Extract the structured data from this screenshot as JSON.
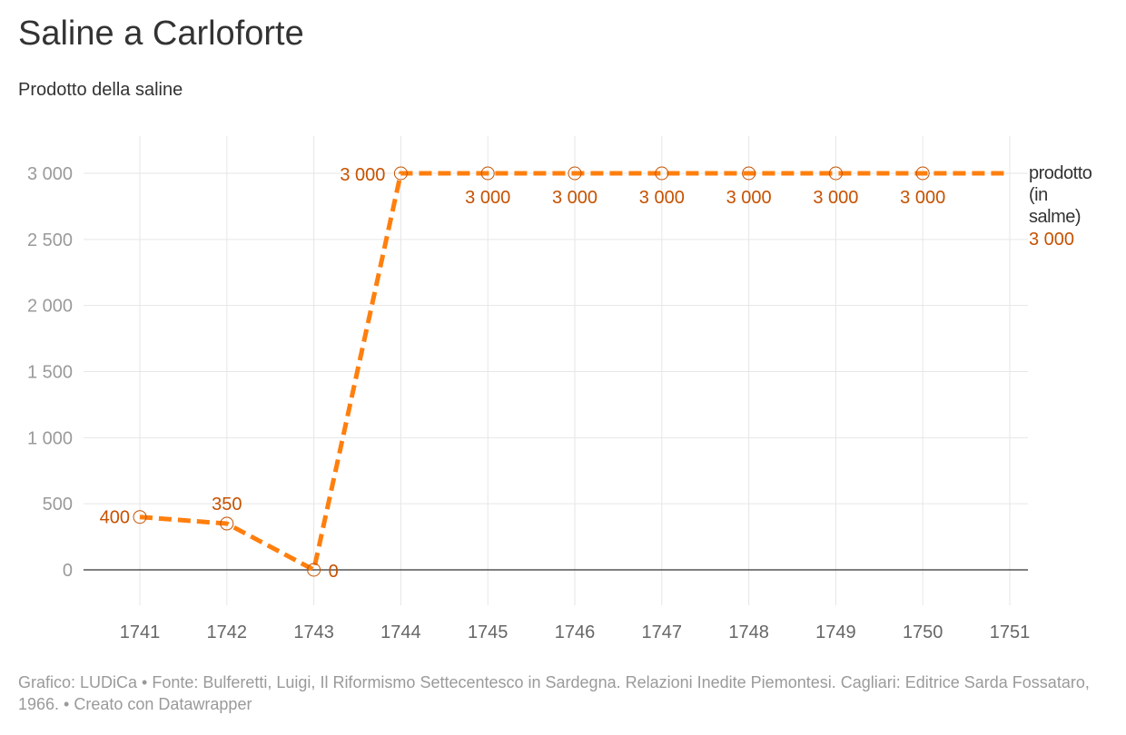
{
  "header": {
    "title": "Saline a Carloforte",
    "subtitle": "Prodotto della saline"
  },
  "footer": {
    "credit": "Grafico: LUDiCa • Fonte: Bulferetti, Luigi, Il Riformismo Settecentesco in Sardegna. Relazioni Inedite Piemontesi. Cagliari: Editrice Sarda Fossataro, 1966. • Creato con Datawrapper"
  },
  "colors": {
    "line": "#ff7f0e",
    "label": "#c65100",
    "grid": "#e6e6e6",
    "zero_axis": "#333333",
    "tick_text": "#9a9a9a",
    "x_tick_text": "#666666",
    "series_label": "#333333"
  },
  "chart_data": {
    "type": "line",
    "x": [
      1741,
      1742,
      1743,
      1744,
      1745,
      1746,
      1747,
      1748,
      1749,
      1750,
      1751
    ],
    "series": [
      {
        "name": "prodotto (in salme)",
        "values": [
          400,
          350,
          0,
          3000,
          3000,
          3000,
          3000,
          3000,
          3000,
          3000,
          3000
        ],
        "data_labels": [
          "400",
          "350",
          "0",
          "3 000",
          "3 000",
          "3 000",
          "3 000",
          "3 000",
          "3 000",
          "3 000",
          "3 000"
        ],
        "end_label_lines": [
          "prodotto",
          "(in",
          "salme)"
        ],
        "end_value_label": "3 000",
        "line_style": "dashed"
      }
    ],
    "y_ticks": [
      0,
      500,
      1000,
      1500,
      2000,
      2500,
      3000
    ],
    "y_tick_labels": [
      "0",
      "500",
      "1 000",
      "1 500",
      "2 000",
      "2 500",
      "3 000"
    ],
    "x_tick_labels": [
      "1741",
      "1742",
      "1743",
      "1744",
      "1745",
      "1746",
      "1747",
      "1748",
      "1749",
      "1750",
      "1751"
    ],
    "xlabel": "",
    "ylabel": "",
    "xlim": [
      1740.35,
      1751.2
    ],
    "ylim": [
      -300,
      3300
    ],
    "grid": true,
    "legend": "none"
  }
}
